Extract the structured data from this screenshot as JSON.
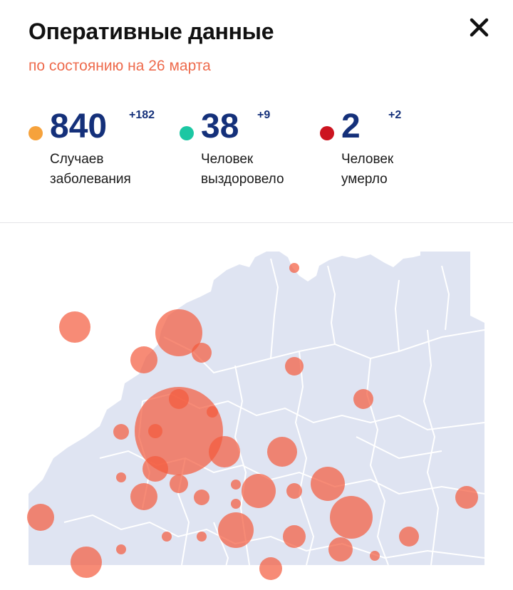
{
  "header": {
    "title": "Оперативные данные",
    "subtitle": "по состоянию на 26 марта"
  },
  "stats": [
    {
      "value": "840",
      "delta": "+182",
      "label_line1": "Случаев",
      "label_line2": "заболевания",
      "color": "#f6a23c"
    },
    {
      "value": "38",
      "delta": "+9",
      "label_line1": "Человек",
      "label_line2": "выздоровело",
      "color": "#1cc7a3"
    },
    {
      "value": "2",
      "delta": "+2",
      "label_line1": "Человек",
      "label_line2": "умерло",
      "color": "#cc1420"
    }
  ],
  "colors": {
    "map_land": "#dfe4f2",
    "map_border": "#ffffff",
    "marker": "#f45a3c",
    "text_accent": "#14307a"
  },
  "icons": {
    "close": "close-icon"
  }
}
